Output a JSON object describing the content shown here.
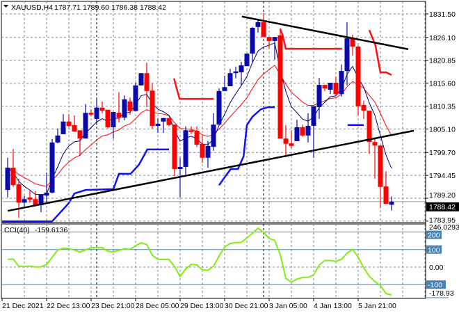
{
  "header": {
    "symbol": "XAUUSD,H4",
    "open": "1787.71",
    "high": "1789.60",
    "low": "1786.38",
    "close": "1788.42",
    "menu_icon": "triangle-down-icon"
  },
  "colors": {
    "bull": "#0A0AA8",
    "bear": "#FF0000",
    "ma_fast": "#000080",
    "ma_slow": "#FF0000",
    "support_step": "#1010FF",
    "resist_step": "#FF1010",
    "trendline": "#000000",
    "grid": "#7E8A97",
    "cci": "#80EE10",
    "cci_level": "#4682B4"
  },
  "chart_data": [
    {
      "type": "candlestick",
      "title": "XAUUSD,H4",
      "ylim": [
        1783.1,
        1834.4
      ],
      "y_ticks": [
        "1831.50",
        "1826.10",
        "1820.85",
        "1815.60",
        "1810.35",
        "1805.10",
        "1799.70",
        "1794.45",
        "1789.20",
        "1783.95"
      ],
      "current_price_label": "1788.42",
      "x_tick_labels": [
        "21 Dec 2021",
        "22 Dec 13:00",
        "23 Dec 21:00",
        "28 Dec 05:00",
        "29 Dec 13:00",
        "30 Dec 21:00",
        "3 Jan 05:00",
        "4 Jan 13:00",
        "5 Jan 21:00"
      ],
      "x_tick_candle_index": [
        -1,
        7,
        15,
        23,
        31,
        39,
        47,
        55,
        63
      ],
      "period_separators_candle_index": [
        16,
        46
      ],
      "ohlc": [
        [
          1791.1,
          1798.5,
          1789.4,
          1796.2
        ],
        [
          1796.2,
          1800.5,
          1791.8,
          1792.2
        ],
        [
          1792.4,
          1793.7,
          1784.7,
          1788.2
        ],
        [
          1788.2,
          1789.8,
          1787.3,
          1789.0
        ],
        [
          1789.4,
          1791.1,
          1788.2,
          1788.9
        ],
        [
          1789.0,
          1790.8,
          1787.3,
          1787.6
        ],
        [
          1787.6,
          1790.0,
          1786.0,
          1790.0
        ],
        [
          1789.8,
          1795.1,
          1788.4,
          1790.5
        ],
        [
          1790.5,
          1802.8,
          1790.3,
          1802.0
        ],
        [
          1802.0,
          1805.2,
          1801.8,
          1803.6
        ],
        [
          1803.9,
          1808.5,
          1803.9,
          1806.8
        ],
        [
          1806.8,
          1808.5,
          1805.5,
          1805.8
        ],
        [
          1806.0,
          1808.2,
          1804.5,
          1804.5
        ],
        [
          1804.8,
          1804.8,
          1798.9,
          1802.9
        ],
        [
          1802.9,
          1810.8,
          1802.9,
          1808.8
        ],
        [
          1808.8,
          1809.6,
          1808.0,
          1808.4
        ],
        [
          1807.4,
          1812.2,
          1806.0,
          1810.0
        ],
        [
          1810.0,
          1811.4,
          1808.7,
          1809.3
        ],
        [
          1809.5,
          1809.5,
          1805.2,
          1805.5
        ],
        [
          1805.5,
          1809.0,
          1802.9,
          1809.0
        ],
        [
          1808.8,
          1813.5,
          1806.6,
          1807.7
        ],
        [
          1807.7,
          1812.8,
          1807.1,
          1811.9
        ],
        [
          1811.4,
          1812.3,
          1808.4,
          1809.2
        ],
        [
          1809.2,
          1815.7,
          1809.2,
          1815.1
        ],
        [
          1815.1,
          1817.9,
          1815.1,
          1817.9
        ],
        [
          1817.9,
          1820.3,
          1810.1,
          1813.8
        ],
        [
          1813.9,
          1815.5,
          1805.2,
          1805.8
        ],
        [
          1805.8,
          1807.6,
          1804.2,
          1806.3
        ],
        [
          1806.8,
          1807.6,
          1804.2,
          1807.6
        ],
        [
          1807.6,
          1807.6,
          1805.7,
          1806.0
        ],
        [
          1806.1,
          1806.1,
          1794.3,
          1795.9
        ],
        [
          1795.9,
          1798.5,
          1789.4,
          1796.4
        ],
        [
          1796.4,
          1805.7,
          1794.6,
          1804.8
        ],
        [
          1804.8,
          1805.7,
          1803.9,
          1804.4
        ],
        [
          1804.7,
          1805.7,
          1801.0,
          1801.5
        ],
        [
          1801.7,
          1803.6,
          1797.3,
          1798.5
        ],
        [
          1798.5,
          1802.3,
          1796.2,
          1801.2
        ],
        [
          1801.0,
          1808.7,
          1800.1,
          1806.1
        ],
        [
          1806.1,
          1814.4,
          1806.1,
          1813.8
        ],
        [
          1813.8,
          1817.3,
          1813.8,
          1814.7
        ],
        [
          1814.9,
          1818.9,
          1814.9,
          1817.9
        ],
        [
          1817.9,
          1819.4,
          1816.7,
          1818.3
        ],
        [
          1818.1,
          1820.5,
          1815.1,
          1819.7
        ],
        [
          1819.5,
          1822.4,
          1819.5,
          1822.4
        ],
        [
          1822.4,
          1828.5,
          1820.3,
          1828.3
        ],
        [
          1828.5,
          1830.4,
          1827.2,
          1829.6
        ],
        [
          1829.6,
          1831.7,
          1826.2,
          1826.2
        ],
        [
          1826.2,
          1826.2,
          1823.5,
          1825.3
        ],
        [
          1825.3,
          1826.2,
          1821.0,
          1826.2
        ],
        [
          1826.6,
          1828.2,
          1802.9,
          1802.9
        ],
        [
          1802.9,
          1806.0,
          1798.6,
          1801.7
        ],
        [
          1801.8,
          1804.8,
          1800.7,
          1801.2
        ],
        [
          1802.3,
          1807.2,
          1802.3,
          1805.5
        ],
        [
          1805.5,
          1806.1,
          1803.3,
          1803.6
        ],
        [
          1803.6,
          1808.7,
          1802.0,
          1805.8
        ],
        [
          1805.8,
          1810.3,
          1798.5,
          1810.3
        ],
        [
          1810.1,
          1816.8,
          1807.4,
          1815.2
        ],
        [
          1815.2,
          1815.2,
          1813.8,
          1814.4
        ],
        [
          1814.1,
          1815.7,
          1813.1,
          1815.7
        ],
        [
          1815.7,
          1817.1,
          1812.7,
          1813.1
        ],
        [
          1813.1,
          1819.9,
          1812.5,
          1818.4
        ],
        [
          1818.4,
          1829.6,
          1815.1,
          1825.9
        ],
        [
          1825.9,
          1826.7,
          1821.9,
          1824.0
        ],
        [
          1824.0,
          1824.3,
          1808.2,
          1810.3
        ],
        [
          1810.6,
          1811.6,
          1807.4,
          1809.3
        ],
        [
          1809.3,
          1809.3,
          1799.4,
          1802.1
        ],
        [
          1802.1,
          1802.9,
          1793.7,
          1801.3
        ],
        [
          1801.3,
          1801.3,
          1787.0,
          1791.8
        ],
        [
          1791.9,
          1795.4,
          1787.9,
          1787.9
        ],
        [
          1787.71,
          1789.6,
          1786.38,
          1788.42
        ]
      ],
      "ma_fast_period": 6,
      "ma_slow_period": 14,
      "support_step_segments": [
        [
          [
            -1,
            1783.9
          ],
          [
            8,
            1783.9
          ],
          [
            11,
            1788.1
          ],
          [
            12,
            1790.3
          ],
          [
            14,
            1791.1
          ],
          [
            19,
            1791.3
          ],
          [
            20,
            1794.8
          ],
          [
            22.1,
            1794.8
          ],
          [
            23.6,
            1796.9
          ],
          [
            25.1,
            1800.4
          ],
          [
            29,
            1800.4
          ]
        ],
        [
          [
            38,
            1792.2
          ],
          [
            39,
            1794.0
          ],
          [
            40.1,
            1795.9
          ],
          [
            41.4,
            1795.9
          ],
          [
            42.4,
            1798.8
          ],
          [
            43,
            1806.0
          ],
          [
            44,
            1807.9
          ],
          [
            45.5,
            1809.6
          ],
          [
            46.8,
            1810.1
          ],
          [
            48,
            1810.1
          ]
        ],
        [
          [
            61.1,
            1806.0
          ],
          [
            64,
            1806.0
          ]
        ]
      ],
      "resist_step_segments": [
        [
          [
            29.9,
            1816.7
          ],
          [
            30.9,
            1812.0
          ],
          [
            37,
            1812.0
          ]
        ],
        [
          [
            49,
            1828.0
          ],
          [
            49.4,
            1826.7
          ],
          [
            50,
            1823.5
          ],
          [
            60.1,
            1823.5
          ]
        ],
        [
          [
            65,
            1827.8
          ],
          [
            66.1,
            1824.3
          ],
          [
            67,
            1818.1
          ],
          [
            68,
            1818.1
          ],
          [
            69,
            1817.5
          ]
        ]
      ],
      "trendlines": [
        {
          "name": "lower-support-trendline",
          "from": [
            0,
            1786.3
          ],
          "to": [
            73,
            1804.7
          ]
        },
        {
          "name": "upper-resistance-trendline",
          "from": [
            42.1,
            1830.9
          ],
          "to": [
            72,
            1823.4
          ]
        }
      ]
    },
    {
      "type": "line",
      "title": "CCI(40)",
      "value_label": "-159.6136",
      "ylim": [
        -178.93,
        246.0293
      ],
      "max_label": "246.0293",
      "min_label": "-178.93",
      "zero_label": "0.00",
      "levels": [
        {
          "value": 200,
          "label": "200"
        },
        {
          "value": 100,
          "label": "100"
        },
        {
          "value": -100,
          "label": "-100"
        }
      ],
      "values": [
        44,
        46,
        4,
        3,
        5,
        1,
        1,
        15,
        56,
        97,
        107,
        105,
        97,
        86,
        98,
        110,
        112,
        112,
        90,
        87,
        95,
        105,
        101,
        122,
        139,
        128,
        68,
        44,
        44,
        44,
        3,
        -54,
        -11,
        16,
        12,
        -15,
        -19,
        5,
        63,
        114,
        135,
        140,
        141,
        166,
        193,
        222,
        199,
        163,
        152,
        71,
        -65,
        -86,
        -69,
        -60,
        -59,
        -44,
        11,
        37,
        37,
        33,
        44,
        79,
        101,
        57,
        -4,
        -52,
        -83,
        -106,
        -151,
        -159.6
      ]
    }
  ]
}
